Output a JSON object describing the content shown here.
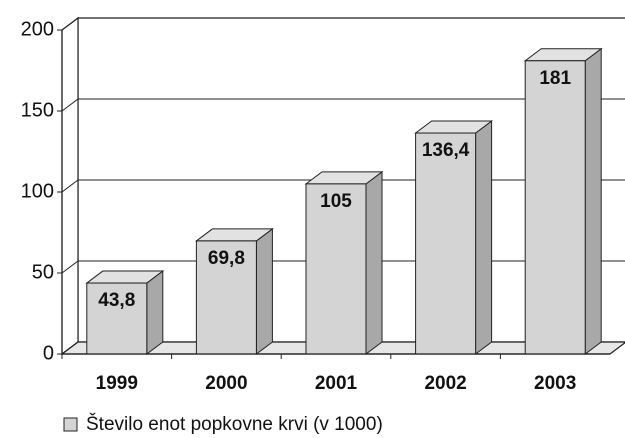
{
  "chart_data": {
    "type": "bar3d",
    "categories": [
      "1999",
      "2000",
      "2001",
      "2002",
      "2003"
    ],
    "series": [
      {
        "name": "Število enot popkovne krvi (v 1000)",
        "color": "#d4d4d4",
        "values": [
          43.8,
          69.8,
          105,
          136.4,
          181
        ],
        "value_labels": [
          "43,8",
          "69,8",
          "105",
          "136,4",
          "181"
        ]
      }
    ],
    "ylim": [
      0,
      200
    ],
    "yticks": [
      0,
      50,
      100,
      150,
      200
    ],
    "grid": true,
    "legend": "bottom-left"
  }
}
